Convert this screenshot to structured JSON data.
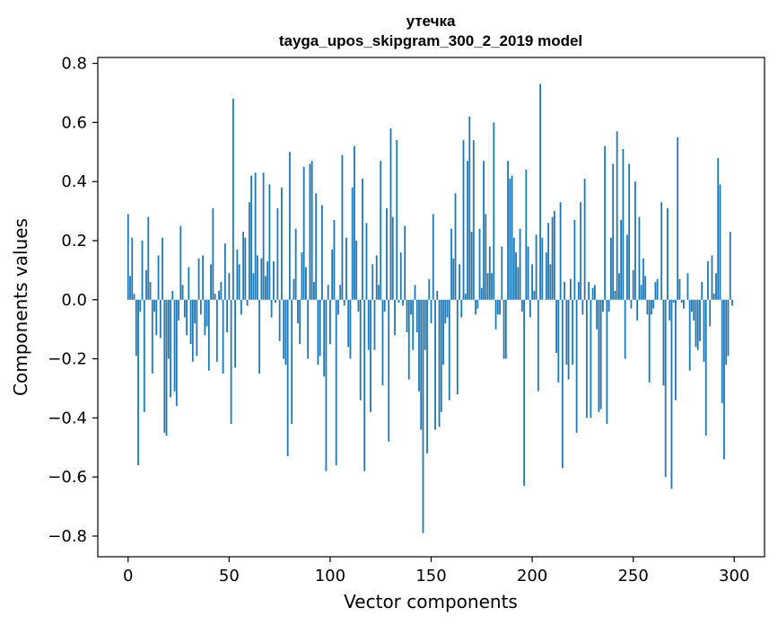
{
  "chart_data": {
    "type": "bar",
    "title": "утечка",
    "subtitle": "tayga_upos_skipgram_300_2_2019 model",
    "xlabel": "Vector components",
    "ylabel": "Components values",
    "xlim": [
      -15,
      315
    ],
    "ylim": [
      -0.87,
      0.82
    ],
    "xticks": [
      0,
      50,
      100,
      150,
      200,
      250,
      300
    ],
    "xtick_labels": [
      "0",
      "50",
      "100",
      "150",
      "200",
      "250",
      "300"
    ],
    "yticks": [
      -0.8,
      -0.6,
      -0.4,
      -0.2,
      0.0,
      0.2,
      0.4,
      0.6,
      0.8
    ],
    "ytick_labels": [
      "−0.8",
      "−0.6",
      "−0.4",
      "−0.2",
      "0.0",
      "0.2",
      "0.4",
      "0.6",
      "0.8"
    ],
    "grid": false,
    "bar_color": "#1f77b4",
    "x": [
      0,
      1,
      2,
      3,
      4,
      5,
      6,
      7,
      8,
      9,
      10,
      11,
      12,
      13,
      14,
      15,
      16,
      17,
      18,
      19,
      20,
      21,
      22,
      23,
      24,
      25,
      26,
      27,
      28,
      29,
      30,
      31,
      32,
      33,
      34,
      35,
      36,
      37,
      38,
      39,
      40,
      41,
      42,
      43,
      44,
      45,
      46,
      47,
      48,
      49,
      50,
      51,
      52,
      53,
      54,
      55,
      56,
      57,
      58,
      59,
      60,
      61,
      62,
      63,
      64,
      65,
      66,
      67,
      68,
      69,
      70,
      71,
      72,
      73,
      74,
      75,
      76,
      77,
      78,
      79,
      80,
      81,
      82,
      83,
      84,
      85,
      86,
      87,
      88,
      89,
      90,
      91,
      92,
      93,
      94,
      95,
      96,
      97,
      98,
      99,
      100,
      101,
      102,
      103,
      104,
      105,
      106,
      107,
      108,
      109,
      110,
      111,
      112,
      113,
      114,
      115,
      116,
      117,
      118,
      119,
      120,
      121,
      122,
      123,
      124,
      125,
      126,
      127,
      128,
      129,
      130,
      131,
      132,
      133,
      134,
      135,
      136,
      137,
      138,
      139,
      140,
      141,
      142,
      143,
      144,
      145,
      146,
      147,
      148,
      149,
      150,
      151,
      152,
      153,
      154,
      155,
      156,
      157,
      158,
      159,
      160,
      161,
      162,
      163,
      164,
      165,
      166,
      167,
      168,
      169,
      170,
      171,
      172,
      173,
      174,
      175,
      176,
      177,
      178,
      179,
      180,
      181,
      182,
      183,
      184,
      185,
      186,
      187,
      188,
      189,
      190,
      191,
      192,
      193,
      194,
      195,
      196,
      197,
      198,
      199,
      200,
      201,
      202,
      203,
      204,
      205,
      206,
      207,
      208,
      209,
      210,
      211,
      212,
      213,
      214,
      215,
      216,
      217,
      218,
      219,
      220,
      221,
      222,
      223,
      224,
      225,
      226,
      227,
      228,
      229,
      230,
      231,
      232,
      233,
      234,
      235,
      236,
      237,
      238,
      239,
      240,
      241,
      242,
      243,
      244,
      245,
      246,
      247,
      248,
      249,
      250,
      251,
      252,
      253,
      254,
      255,
      256,
      257,
      258,
      259,
      260,
      261,
      262,
      263,
      264,
      265,
      266,
      267,
      268,
      269,
      270,
      271,
      272,
      273,
      274,
      275,
      276,
      277,
      278,
      279,
      280,
      281,
      282,
      283,
      284,
      285,
      286,
      287,
      288,
      289,
      290,
      291,
      292,
      293,
      294,
      295,
      296,
      297,
      298,
      299
    ],
    "values": [
      0.29,
      0.08,
      0.21,
      0.02,
      -0.19,
      -0.56,
      -0.04,
      0.2,
      -0.38,
      0.1,
      0.28,
      0.06,
      -0.25,
      -0.04,
      -0.12,
      0.15,
      -0.13,
      0.21,
      -0.45,
      -0.46,
      -0.2,
      -0.33,
      0.03,
      -0.31,
      -0.36,
      -0.07,
      0.25,
      0.05,
      -0.06,
      -0.12,
      0.11,
      -0.15,
      -0.21,
      -0.08,
      -0.19,
      0.14,
      -0.05,
      0.15,
      -0.12,
      -0.09,
      -0.24,
      0.12,
      0.31,
      0.02,
      -0.21,
      0.03,
      0.06,
      -0.25,
      0.19,
      -0.11,
      0.09,
      -0.42,
      0.68,
      -0.23,
      0.17,
      0.12,
      -0.05,
      0.23,
      0.21,
      -0.02,
      0.33,
      0.42,
      0.09,
      0.43,
      0.15,
      -0.25,
      0.14,
      0.43,
      0.08,
      0.13,
      0.39,
      -0.06,
      0.13,
      -0.01,
      0.31,
      -0.14,
      0.38,
      -0.2,
      -0.22,
      -0.53,
      0.5,
      -0.42,
      0.07,
      0.24,
      -0.08,
      -0.15,
      0.16,
      0.45,
      0.11,
      -0.2,
      0.46,
      0.47,
      0.06,
      0.36,
      -0.22,
      -0.19,
      0.32,
      -0.26,
      -0.58,
      0.05,
      -0.15,
      0.17,
      0.27,
      -0.56,
      -0.05,
      0.05,
      0.49,
      -0.02,
      0.21,
      -0.16,
      -0.2,
      0.38,
      0.52,
      0.2,
      -0.04,
      -0.34,
      0.41,
      -0.58,
      0.26,
      -0.17,
      -0.38,
      0.12,
      -0.17,
      0.15,
      0.05,
      0.47,
      -0.29,
      -0.04,
      0.31,
      -0.48,
      0.58,
      0.28,
      -0.12,
      0.54,
      -0.01,
      0.16,
      -0.02,
      0.25,
      -0.11,
      -0.27,
      -0.05,
      -0.17,
      0.05,
      -0.11,
      -0.31,
      -0.44,
      -0.79,
      -0.17,
      -0.52,
      0.07,
      -0.08,
      0.29,
      -0.44,
      0.03,
      -0.43,
      -0.38,
      -0.22,
      -0.08,
      -0.06,
      -0.34,
      0.24,
      0.14,
      0.36,
      -0.32,
      0.12,
      -0.06,
      0.54,
      0.02,
      0.47,
      0.62,
      0.23,
      0.54,
      -0.05,
      -0.03,
      0.24,
      0.04,
      0.47,
      0.29,
      0.09,
      0.18,
      0.09,
      0.6,
      -0.1,
      -0.05,
      -0.05,
      0.18,
      -0.2,
      -0.2,
      0.47,
      0.41,
      0.42,
      0.21,
      0.16,
      0.11,
      0.24,
      -0.04,
      -0.63,
      0.44,
      0.18,
      -0.06,
      0.12,
      0.03,
      0.22,
      -0.31,
      0.73,
      0.21,
      0.0,
      0.16,
      0.26,
      0.12,
      0.28,
      0.3,
      -0.18,
      -0.28,
      0.33,
      -0.57,
      0.06,
      -0.22,
      -0.27,
      0.07,
      -0.22,
      0.27,
      -0.45,
      0.06,
      0.33,
      -0.05,
      0.41,
      -0.4,
      0.06,
      -0.4,
      0.04,
      0.05,
      -0.1,
      -0.38,
      -0.37,
      -0.04,
      0.52,
      -0.42,
      -0.04,
      0.21,
      0.46,
      0.03,
      0.57,
      0.09,
      0.27,
      0.51,
      -0.2,
      0.22,
      0.46,
      -0.03,
      0.1,
      0.4,
      -0.07,
      0.28,
      0.05,
      0.14,
      0.08,
      -0.05,
      -0.28,
      -0.05,
      -0.03,
      0.06,
      0.07,
      0.0,
      0.33,
      -0.29,
      -0.6,
      0.31,
      -0.07,
      -0.64,
      -0.01,
      -0.34,
      0.55,
      0.07,
      -0.01,
      -0.03,
      0.0,
      0.09,
      -0.24,
      -0.04,
      -0.07,
      -0.16,
      -0.17,
      -0.14,
      0.06,
      -0.21,
      -0.46,
      0.13,
      -0.09,
      0.15,
      0.02,
      0.09,
      0.48,
      0.39,
      -0.35,
      -0.54,
      -0.22,
      -0.19,
      0.23,
      -0.02
    ]
  }
}
